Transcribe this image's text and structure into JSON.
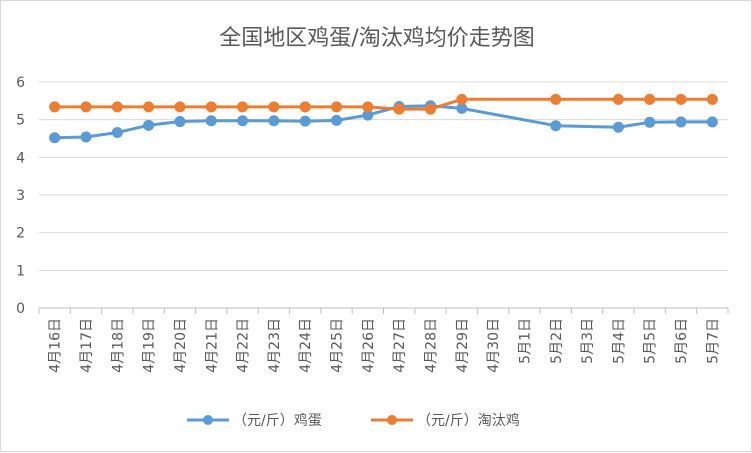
{
  "chart_data": {
    "type": "line",
    "title": "全国地区鸡蛋/淘汰鸡均价走势图",
    "xlabel": "",
    "ylabel": "",
    "categories": [
      "4月16日",
      "4月17日",
      "4月18日",
      "4月19日",
      "4月20日",
      "4月21日",
      "4月22日",
      "4月23日",
      "4月24日",
      "4月25日",
      "4月26日",
      "4月27日",
      "4月28日",
      "4月29日",
      "4月30日",
      "5月1日",
      "5月2日",
      "5月3日",
      "5月4日",
      "5月5日",
      "5月6日",
      "5月7日"
    ],
    "ylim": [
      0,
      6
    ],
    "yticks": [
      "0",
      "1",
      "2",
      "3",
      "4",
      "5",
      "6"
    ],
    "grid": true,
    "legend_position": "bottom",
    "series": [
      {
        "name": "（元/斤）鸡蛋",
        "color": "#5b9bd5",
        "values": [
          4.52,
          4.54,
          4.66,
          4.85,
          4.95,
          4.97,
          4.97,
          4.97,
          4.96,
          4.98,
          5.12,
          5.35,
          5.37,
          5.3,
          null,
          null,
          4.84,
          null,
          4.8,
          4.93,
          4.94,
          4.94
        ]
      },
      {
        "name": "（元/斤）淘汰鸡",
        "color": "#ed7d31",
        "values": [
          5.34,
          5.34,
          5.34,
          5.34,
          5.34,
          5.34,
          5.34,
          5.34,
          5.34,
          5.34,
          5.34,
          5.28,
          5.28,
          5.54,
          null,
          null,
          5.54,
          null,
          5.54,
          5.54,
          5.54,
          5.54
        ]
      }
    ]
  }
}
